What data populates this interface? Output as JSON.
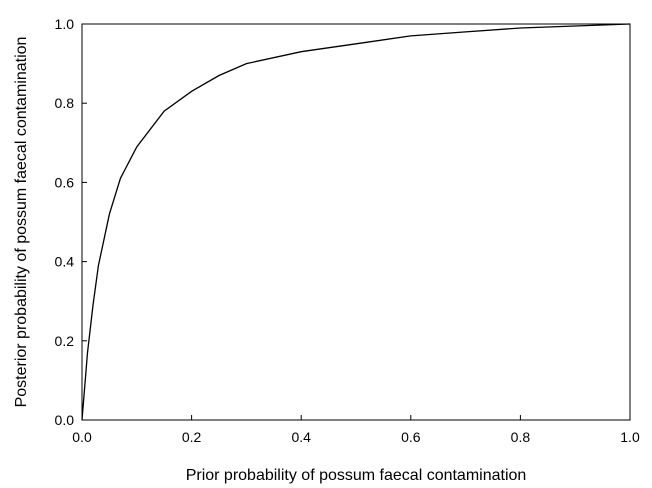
{
  "chart_data": {
    "type": "line",
    "title": "",
    "xlabel": "Prior probability of possum faecal contamination",
    "ylabel": "Posterior probability of possum faecal contamination",
    "xlim": [
      0,
      1
    ],
    "ylim": [
      0,
      1
    ],
    "x_ticks": [
      "0.0",
      "0.2",
      "0.4",
      "0.6",
      "0.8",
      "1.0"
    ],
    "y_ticks": [
      "0.0",
      "0.2",
      "0.4",
      "0.6",
      "0.8",
      "1.0"
    ],
    "grid": false,
    "legend": "none",
    "series": [
      {
        "color": "#000000",
        "x": [
          0,
          0.01,
          0.02,
          0.03,
          0.05,
          0.07,
          0.1,
          0.15,
          0.2,
          0.25,
          0.3,
          0.4,
          0.5,
          0.6,
          0.7,
          0.8,
          0.9,
          1.0
        ],
        "y": [
          0,
          0.17,
          0.29,
          0.39,
          0.52,
          0.61,
          0.69,
          0.78,
          0.83,
          0.87,
          0.9,
          0.93,
          0.95,
          0.97,
          0.98,
          0.99,
          0.995,
          1.0
        ]
      }
    ]
  }
}
